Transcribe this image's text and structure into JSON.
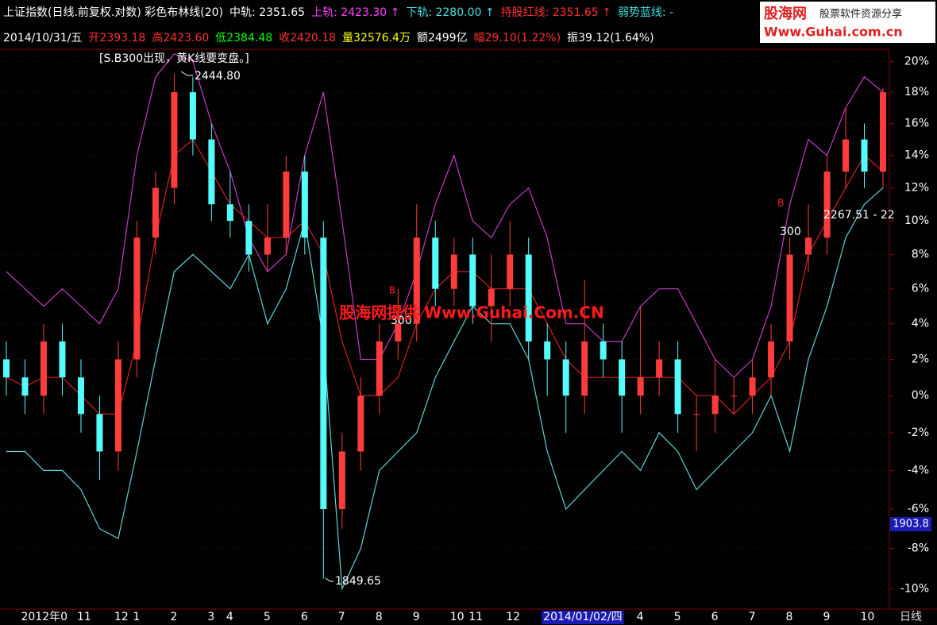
{
  "header": {
    "line1": [
      {
        "text": "上证指数(日线.前复权.对数) 彩色布林线(20)",
        "color": "#ffffff"
      },
      {
        "text": "中轨: 2351.65",
        "color": "#ffffff"
      },
      {
        "text": "上轨: 2423.30 ↑",
        "color": "#ff40ff"
      },
      {
        "text": "下轨: 2280.00 ↑",
        "color": "#40e0e0"
      },
      {
        "text": "持股红线: 2351.65 ↑",
        "color": "#ff3030"
      },
      {
        "text": "弱势蓝线: -",
        "color": "#40e0e0"
      }
    ],
    "line2": [
      {
        "text": "2014/10/31/五",
        "color": "#ffffff"
      },
      {
        "text": "开2393.18",
        "color": "#ff3030"
      },
      {
        "text": "高2423.60",
        "color": "#ff3030"
      },
      {
        "text": "低2384.48",
        "color": "#00ff00"
      },
      {
        "text": "收2420.18",
        "color": "#ff3030"
      },
      {
        "text": "量32576.4万",
        "color": "#ffff00"
      },
      {
        "text": "额2499亿",
        "color": "#ffffff"
      },
      {
        "text": "幅29.10(1.22%)",
        "color": "#ff3030"
      },
      {
        "text": "振39.12(1.64%)",
        "color": "#ffffff"
      }
    ]
  },
  "logo": {
    "name": "股海网",
    "slogan": "股票软件资源分享",
    "url": "Www.Guhai.com.cn"
  },
  "chart_data": {
    "type": "candlestick",
    "log_scale": true,
    "grid": true,
    "up_color": "#ff3c3c",
    "down_color": "#54fcfc",
    "ylim": [
      -10.8,
      20.8
    ],
    "yticks": [
      {
        "value": 20,
        "label": "20%"
      },
      {
        "value": 18,
        "label": "18%"
      },
      {
        "value": 16,
        "label": "16%"
      },
      {
        "value": 14,
        "label": "14%"
      },
      {
        "value": 12,
        "label": "12%"
      },
      {
        "value": 10,
        "label": "10%"
      },
      {
        "value": 8,
        "label": "8%"
      },
      {
        "value": 6,
        "label": "6%"
      },
      {
        "value": 4,
        "label": "4%"
      },
      {
        "value": 2,
        "label": "2%"
      },
      {
        "value": 0,
        "label": "0%"
      },
      {
        "value": -2,
        "label": "-2%"
      },
      {
        "value": -4,
        "label": "-4%"
      },
      {
        "value": -6,
        "label": "-6%"
      },
      {
        "value": -8,
        "label": "-8%"
      },
      {
        "value": -10,
        "label": "-10%"
      }
    ],
    "categories": [
      null,
      "2012年0",
      null,
      null,
      "11",
      null,
      "12",
      "1",
      null,
      "2",
      null,
      "3",
      "4",
      null,
      "5",
      null,
      "6",
      null,
      "7",
      null,
      "8",
      null,
      "9",
      null,
      "10",
      "11",
      null,
      "12",
      null,
      null,
      null,
      "2014/01/02/四",
      null,
      null,
      "4",
      null,
      "5",
      null,
      "6",
      null,
      "7",
      null,
      "8",
      null,
      "9",
      null,
      "10",
      null
    ],
    "highlight_category": "2014/01/02/四",
    "period_label": "日线",
    "candles": {
      "open": [
        2,
        1,
        0,
        3,
        1,
        -1,
        -3,
        2,
        9,
        12,
        18,
        15,
        11,
        10,
        8,
        9,
        13,
        9,
        -6,
        -3,
        0,
        3,
        4,
        9,
        6,
        8,
        5,
        6,
        8,
        3,
        2,
        0,
        3,
        2,
        0,
        1,
        2,
        -1,
        -1,
        0,
        0,
        1,
        3,
        8,
        9,
        13,
        15,
        13
      ],
      "high": [
        3,
        2,
        4,
        4,
        2,
        0,
        3,
        10,
        13,
        19.2,
        19,
        16,
        13,
        11,
        11,
        14,
        14,
        10,
        -2,
        1,
        4,
        6,
        11,
        10,
        9,
        9,
        8,
        10,
        9,
        4,
        3,
        6.5,
        4,
        3,
        5,
        3,
        3,
        0,
        2,
        1,
        2,
        4,
        9,
        11,
        14,
        17,
        16,
        18.3
      ],
      "low": [
        0,
        -1,
        -1,
        0,
        -2,
        -4.5,
        -4,
        1,
        8,
        11,
        14,
        10,
        9,
        7,
        7,
        8,
        8,
        -9.5,
        -7,
        -4,
        -1,
        2,
        3,
        5,
        5,
        4,
        3,
        5,
        2,
        0,
        -2,
        -1,
        1,
        -2,
        -1,
        0,
        -2,
        -3,
        -2,
        -1,
        -1,
        0,
        2,
        7,
        8,
        12,
        12,
        12
      ],
      "close": [
        1,
        0,
        3,
        1,
        -1,
        -3,
        2,
        9,
        12,
        18,
        15,
        11,
        10,
        8,
        9,
        13,
        9,
        -6,
        -3,
        0,
        3,
        4,
        9,
        6,
        8,
        5,
        6,
        8,
        3,
        2,
        0,
        3,
        2,
        0,
        1,
        2,
        -1,
        -1,
        0,
        0,
        1,
        3,
        8,
        9,
        13,
        15,
        13,
        18
      ]
    },
    "series": [
      {
        "color": "#c43cc4",
        "values": [
          7,
          6,
          5,
          6,
          5,
          4,
          6,
          14,
          19,
          20.5,
          20,
          16,
          13,
          9,
          7,
          8,
          14,
          18,
          10,
          2,
          2,
          4,
          7,
          11,
          14,
          10,
          9,
          11,
          12,
          9,
          4,
          4,
          3,
          3,
          5,
          6,
          6,
          4,
          2,
          1,
          2,
          5,
          11,
          15,
          14,
          17,
          19,
          18
        ]
      },
      {
        "color": "#d42020",
        "values": [
          1,
          0.5,
          1,
          1,
          0,
          -1,
          -1,
          3,
          9,
          14,
          15,
          13,
          11,
          10,
          9,
          9,
          10,
          8,
          3,
          0,
          0,
          1,
          4,
          6,
          7,
          7,
          6,
          6,
          6,
          4,
          2,
          1,
          1,
          1,
          1,
          1,
          1,
          0,
          0,
          -1,
          0,
          1,
          3,
          8,
          10,
          12,
          14,
          13
        ]
      },
      {
        "color": "#5cd4d4",
        "values": [
          -3,
          -3,
          -4,
          -4,
          -5,
          -7,
          -7.5,
          -3,
          2,
          7,
          8,
          7,
          6,
          8,
          4,
          6,
          10,
          3,
          -10,
          -8,
          -4,
          -3,
          -2,
          1,
          3,
          5,
          4,
          4,
          2,
          -3,
          -6,
          -5,
          -4,
          -3,
          -4,
          -2,
          -3,
          -5,
          -4,
          -3,
          -2,
          0,
          -3,
          2,
          5,
          9,
          11,
          12
        ]
      }
    ],
    "annotations": [
      "[S.B300出现，黄K线要变盘。]",
      "2444.80",
      "1849.65",
      "300",
      "B",
      "300",
      "B",
      "2267.51 - 22"
    ],
    "last_price_label": "1903.8",
    "watermark": "股海网提供 Www.Guhai.Com.CN"
  }
}
